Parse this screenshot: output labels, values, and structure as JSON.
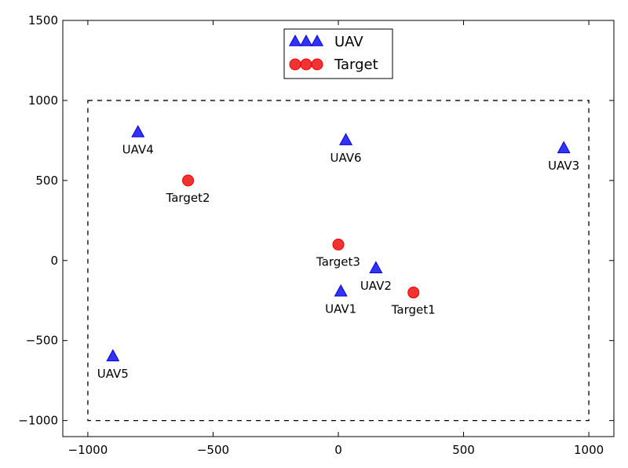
{
  "chart_data": {
    "type": "scatter",
    "xlim": [
      -1100,
      1100
    ],
    "ylim": [
      -1100,
      1500
    ],
    "xticks": [
      -1000,
      -500,
      0,
      500,
      1000
    ],
    "xtick_labels": [
      "−1000",
      "−500",
      "0",
      "500",
      "1000"
    ],
    "yticks": [
      -1000,
      -500,
      0,
      500,
      1000,
      1500
    ],
    "ytick_labels": [
      "−1000",
      "−500",
      "0",
      "500",
      "1000",
      "1500"
    ],
    "grid": false,
    "legend_placement": "upper-center",
    "boundary": {
      "x": [
        -1000,
        1000
      ],
      "y": [
        -1000,
        1000
      ],
      "style": "dashed",
      "color": "#000000"
    },
    "series": [
      {
        "name": "UAV",
        "marker": "triangle",
        "color": "#0000ee",
        "points": [
          {
            "label": "UAV1",
            "x": 10,
            "y": -195
          },
          {
            "label": "UAV2",
            "x": 150,
            "y": -50
          },
          {
            "label": "UAV3",
            "x": 900,
            "y": 700
          },
          {
            "label": "UAV4",
            "x": -800,
            "y": 800
          },
          {
            "label": "UAV5",
            "x": -900,
            "y": -600
          },
          {
            "label": "UAV6",
            "x": 30,
            "y": 750
          }
        ]
      },
      {
        "name": "Target",
        "marker": "circle",
        "color": "#ee0000",
        "points": [
          {
            "label": "Target1",
            "x": 300,
            "y": -200
          },
          {
            "label": "Target2",
            "x": -600,
            "y": 500
          },
          {
            "label": "Target3",
            "x": 0,
            "y": 100
          }
        ]
      }
    ]
  }
}
